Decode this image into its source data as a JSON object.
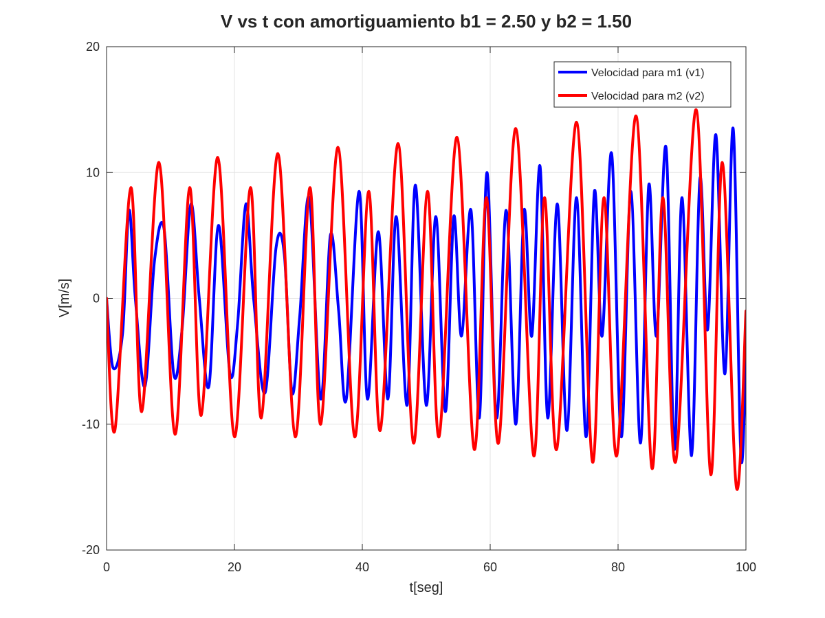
{
  "chart_data": {
    "type": "line",
    "title": "V vs t con amortiguamiento b1 = 2.50 y b2 = 1.50",
    "xlabel": "t[seg]",
    "ylabel": "V[m/s]",
    "xlim": [
      0,
      100
    ],
    "ylim": [
      -20,
      20
    ],
    "xticks": [
      0,
      20,
      40,
      60,
      80,
      100
    ],
    "xtick_labels": [
      "0",
      "20",
      "40",
      "60",
      "80",
      "100"
    ],
    "yticks": [
      -20,
      -10,
      0,
      10,
      20
    ],
    "ytick_labels": [
      "-20",
      "-10",
      "0",
      "10",
      "20"
    ],
    "grid": true,
    "legend_position": "top-right",
    "series": [
      {
        "name": "Velocidad para m1 (v1)",
        "color": "#0000ff",
        "x": [
          0,
          1.0,
          2.5,
          3.5,
          4.5,
          6.0,
          7.5,
          9.0,
          10.5,
          11.8,
          13.2,
          14.5,
          16.0,
          17.5,
          19.3,
          20.5,
          21.8,
          23.0,
          24.8,
          26.5,
          27.8,
          29.0,
          30.2,
          31.7,
          33.5,
          35.0,
          36.3,
          37.5,
          39.5,
          40.8,
          42.5,
          44.0,
          45.3,
          47.0,
          48.3,
          50.0,
          51.5,
          53.0,
          54.3,
          55.5,
          57.0,
          58.3,
          59.5,
          61.0,
          62.5,
          64.0,
          65.3,
          66.5,
          67.8,
          69.0,
          70.5,
          72.0,
          73.5,
          75.0,
          76.3,
          77.5,
          79.0,
          80.5,
          82.0,
          83.5,
          84.8,
          86.0,
          87.5,
          88.8,
          90.0,
          91.5,
          92.8,
          94.0,
          95.3,
          96.7,
          98.0,
          99.2,
          100.0
        ],
        "values": [
          0,
          -5.5,
          -2.8,
          7.0,
          0,
          -7.0,
          3.0,
          5.5,
          -6.0,
          -2.5,
          7.5,
          0,
          -7.0,
          5.8,
          -6.0,
          -2.0,
          7.5,
          0,
          -7.5,
          4.0,
          3.5,
          -7.5,
          -1.5,
          8.0,
          -8.0,
          5.0,
          -1.0,
          -8.0,
          8.5,
          -8.0,
          5.3,
          -8.0,
          6.5,
          -8.5,
          9.0,
          -8.5,
          6.5,
          -9.0,
          6.5,
          -3.0,
          7.0,
          -9.5,
          10.0,
          -9.5,
          7.0,
          -10.0,
          7.0,
          -3.0,
          10.5,
          -9.5,
          7.5,
          -10.5,
          8.0,
          -11.0,
          8.5,
          -3.0,
          11.5,
          -11.0,
          8.5,
          -11.5,
          9.0,
          -3.0,
          12.0,
          -12.0,
          8.0,
          -12.5,
          9.5,
          -2.5,
          13.0,
          -6.0,
          13.5,
          -12.5,
          -4.5
        ]
      },
      {
        "name": "Velocidad para m2 (v2)",
        "color": "#ff0000",
        "x": [
          0,
          1.3,
          3.8,
          5.5,
          8.2,
          10.7,
          13.0,
          14.8,
          17.4,
          20.0,
          22.5,
          24.2,
          26.8,
          29.5,
          31.8,
          33.5,
          36.2,
          38.8,
          41.0,
          42.8,
          45.6,
          48.0,
          50.2,
          52.0,
          54.8,
          57.5,
          59.4,
          61.3,
          64.0,
          66.8,
          68.5,
          70.4,
          73.5,
          76.0,
          77.8,
          79.8,
          82.8,
          85.3,
          87.0,
          89.0,
          92.2,
          94.5,
          96.3,
          98.5,
          100.0
        ],
        "values": [
          0,
          -10.5,
          8.8,
          -9.0,
          10.8,
          -10.8,
          8.8,
          -9.3,
          11.2,
          -11.0,
          8.8,
          -9.5,
          11.5,
          -11.0,
          8.8,
          -10.0,
          12.0,
          -11.0,
          8.5,
          -10.5,
          12.3,
          -11.5,
          8.5,
          -11.0,
          12.8,
          -12.0,
          8.0,
          -11.5,
          13.5,
          -12.5,
          8.0,
          -12.0,
          14.0,
          -13.0,
          8.0,
          -12.5,
          14.5,
          -13.5,
          8.0,
          -13.0,
          15.0,
          -14.0,
          10.8,
          -15.0,
          -1.0
        ]
      }
    ]
  }
}
